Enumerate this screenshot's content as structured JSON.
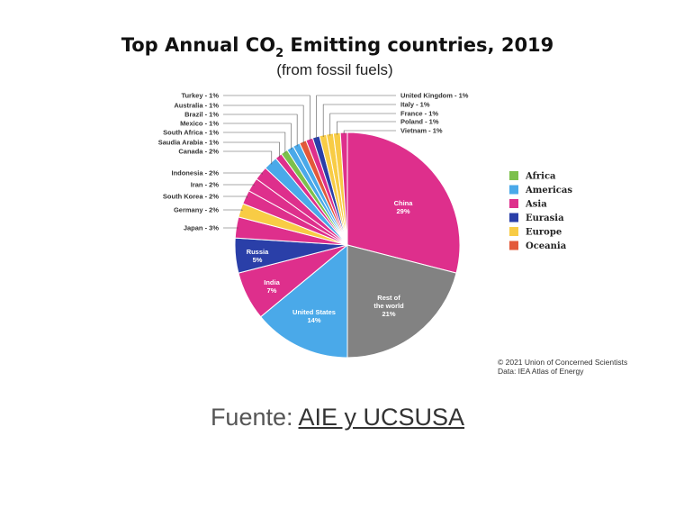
{
  "chart_data": {
    "type": "pie",
    "title_main": "Top Annual CO",
    "title_sub_script": "2",
    "title_rest": " Emitting countries, 2019",
    "subtitle": "(from fossil fuels)",
    "slices": [
      {
        "label": "China",
        "value_label": "29%",
        "value": 29,
        "region": "Asia"
      },
      {
        "label": "Rest of the world",
        "value_label": "21%",
        "value": 21,
        "region": "Other"
      },
      {
        "label": "United States",
        "value_label": "14%",
        "value": 14,
        "region": "Americas"
      },
      {
        "label": "India",
        "value_label": "7%",
        "value": 7,
        "region": "Asia"
      },
      {
        "label": "Russia",
        "value_label": "5%",
        "value": 5,
        "region": "Eurasia"
      },
      {
        "label": "Japan - 3%",
        "value": 3,
        "region": "Asia"
      },
      {
        "label": "Germany - 2%",
        "value": 2,
        "region": "Europe"
      },
      {
        "label": "South Korea - 2%",
        "value": 2,
        "region": "Asia"
      },
      {
        "label": "Iran - 2%",
        "value": 2,
        "region": "Asia"
      },
      {
        "label": "Indonesia - 2%",
        "value": 2,
        "region": "Asia"
      },
      {
        "label": "Canada - 2%",
        "value": 2,
        "region": "Americas"
      },
      {
        "label": "Saudia Arabia - 1%",
        "value": 1,
        "region": "Asia"
      },
      {
        "label": "South Africa - 1%",
        "value": 1,
        "region": "Africa"
      },
      {
        "label": "Mexico - 1%",
        "value": 1,
        "region": "Americas"
      },
      {
        "label": "Brazil - 1%",
        "value": 1,
        "region": "Americas"
      },
      {
        "label": "Australia - 1%",
        "value": 1,
        "region": "Oceania"
      },
      {
        "label": "Turkey - 1%",
        "value": 1,
        "region": "Asia"
      },
      {
        "label": "United Kingdom - 1%",
        "value": 1,
        "region": "Eurasia"
      },
      {
        "label": "Italy - 1%",
        "value": 1,
        "region": "Europe"
      },
      {
        "label": "France - 1%",
        "value": 1,
        "region": "Europe"
      },
      {
        "label": "Poland - 1%",
        "value": 1,
        "region": "Europe"
      },
      {
        "label": "Vietnam - 1%",
        "value": 1,
        "region": "Asia"
      }
    ],
    "legend": [
      {
        "name": "Africa",
        "color": "#7cc04b"
      },
      {
        "name": "Americas",
        "color": "#4aa9e9"
      },
      {
        "name": "Asia",
        "color": "#de2f8c"
      },
      {
        "name": "Eurasia",
        "color": "#2a3fa8"
      },
      {
        "name": "Europe",
        "color": "#f8cc45"
      },
      {
        "name": "Oceania",
        "color": "#e3593a"
      }
    ],
    "other_color": "#828282",
    "legend_placement": "right",
    "credit_line1": "© 2021 Union of Concerned Scientists",
    "credit_line2": "Data: IEA Atlas of Energy"
  },
  "footer": {
    "prefix": "Fuente: ",
    "link_text": "AIE y UCSUSA"
  }
}
